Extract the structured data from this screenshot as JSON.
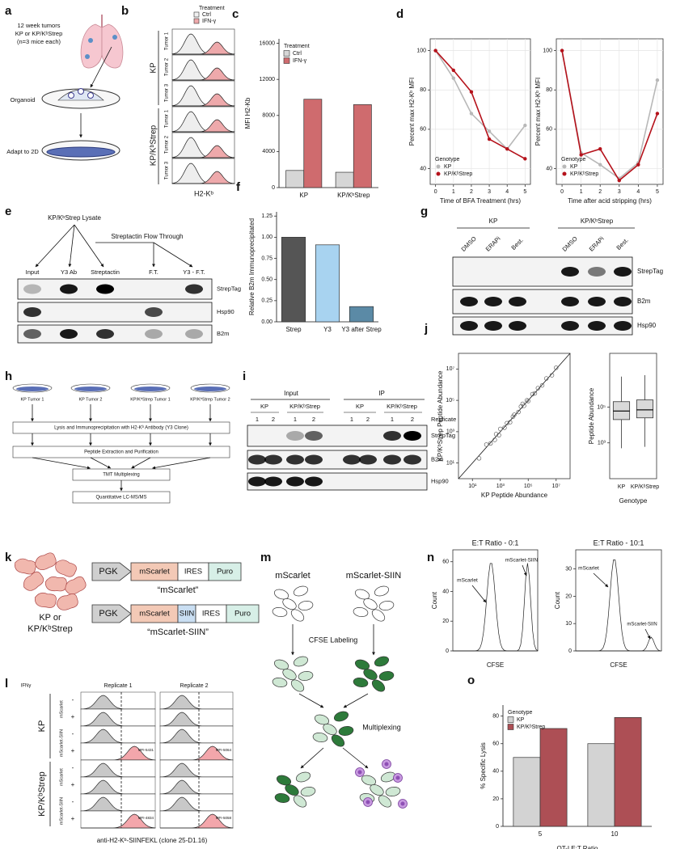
{
  "figure": {
    "a": {
      "label": "a",
      "lines": [
        "12 week tumors",
        "KP or KP/KᵇStrep",
        "(n=3 mice each)"
      ],
      "steps": [
        "Organoid",
        "Adapt to 2D"
      ]
    },
    "b": {
      "label": "b",
      "legend_title": "Treatment",
      "legend": [
        "Ctrl",
        "IFN-γ"
      ],
      "groups": [
        "KP",
        "KP/KᵇStrep"
      ],
      "tumors": [
        "Tumor 1",
        "Tumor 2",
        "Tumor 3"
      ],
      "xlabel": "H2-Kᵇ"
    },
    "e": {
      "label": "e",
      "lysate": "KP/KᵇStrep Lysate",
      "flow": "Streptactin Flow Through",
      "lanes": [
        "Input",
        "Y3 Ab",
        "Streptactin",
        "F.T.",
        "Y3 - F.T."
      ],
      "blots": [
        "StrepTag",
        "Hsp90",
        "B2m"
      ]
    },
    "g": {
      "label": "g",
      "groups": [
        "KP",
        "KP/KᵇStrep"
      ],
      "lanes": [
        "DMSO",
        "ERAPi",
        "Best."
      ],
      "blots": [
        "StrepTag",
        "B2m",
        "Hsp90"
      ]
    },
    "h": {
      "label": "h",
      "tumors": [
        "KP Tumor 1",
        "KP Tumor 2",
        "KP/KᵇStrep Tumor 1",
        "KP/KᵇStrep Tumor 2"
      ],
      "steps": [
        "Lysis and Immunoprecipitation with H2-Kᵇ Antibody (Y3 Clone)",
        "Peptide Extraction and Purification",
        "TMT Multiplexing",
        "Quantitative LC-MS/MS"
      ]
    },
    "i": {
      "label": "i",
      "sections": [
        "Input",
        "IP"
      ],
      "groups": [
        "KP",
        "KP/KᵇStrep"
      ],
      "replicate": "Replicate",
      "replicates": [
        "1",
        "2"
      ],
      "blots": [
        "StrepTag",
        "B2m",
        "Hsp90"
      ]
    },
    "k": {
      "label": "k",
      "cells": [
        "KP or",
        "KP/KᵇStrep"
      ],
      "promoter": "PGK",
      "constructs": [
        {
          "parts": [
            "mScarlet",
            "IRES",
            "Puro"
          ],
          "name": "“mScarlet”"
        },
        {
          "parts": [
            "mScarlet",
            "SIIN",
            "IRES",
            "Puro"
          ],
          "name": "“mScarlet-SIIN”"
        }
      ]
    },
    "l": {
      "label": "l",
      "treatment": "IFNγ",
      "replicates": [
        "Replicate 1",
        "Replicate 2"
      ],
      "signs": [
        "-",
        "+"
      ],
      "constructs": [
        "mScarlet",
        "mScarlet-SIIN"
      ],
      "groups": [
        "KP",
        "KP/KᵇStrep"
      ],
      "mfi": [
        "MFI-5431",
        "MFI-5064",
        "MFI-4834",
        "MFI-5058"
      ],
      "xlabel": "anti-H2-Kᵇ-SIINFEKL (clone 25-D1.16)"
    },
    "m": {
      "label": "m",
      "lines": [
        "mScarlet",
        "mScarlet-SIIN"
      ],
      "steps": [
        "CFSE Labeling",
        "Multiplexing"
      ]
    },
    "n": {
      "label": "n",
      "ylabel": "Count",
      "xlabel": "CFSE",
      "peaks": [
        "mScarlet",
        "mScarlet-SIIN"
      ],
      "panels": [
        {
          "title": "E:T Ratio - 0:1",
          "ylim": [
            0,
            68
          ],
          "yticks": [
            0,
            20,
            40,
            60
          ]
        },
        {
          "title": "E:T Ratio - 10:1",
          "ylim": [
            0,
            37
          ],
          "yticks": [
            0,
            10,
            20,
            30
          ]
        }
      ]
    }
  },
  "chart_data": [
    {
      "label": "c",
      "type": "bar",
      "ylabel": "MFI H2-Kb",
      "legend_title": "Treatment",
      "legend": "upper left",
      "categories": [
        "KP",
        "KP/KᵇStrep"
      ],
      "series": [
        {
          "name": "Ctrl",
          "color": "#d6d6d6",
          "values": [
            1900,
            1700
          ]
        },
        {
          "name": "IFN-γ",
          "color": "#cf6b6e",
          "values": [
            9800,
            9200
          ]
        }
      ],
      "ylim": [
        0,
        16500
      ],
      "yticks": [
        0,
        4000,
        8000,
        12000,
        16000
      ]
    },
    {
      "label": "d",
      "type": "line",
      "xlabel": "Time of BFA Treatment (hrs)",
      "ylabel": "Percent max H2-Kᵇ MFI",
      "legend_title": "Genotype",
      "legend": "lower left",
      "grid": true,
      "x": [
        0,
        1,
        2,
        3,
        4,
        5
      ],
      "series": [
        {
          "name": "KP",
          "color": "#b8b8b8",
          "values": [
            100,
            86,
            68,
            59,
            50,
            62
          ]
        },
        {
          "name": "KP/KᵇStrep",
          "color": "#b5121b",
          "values": [
            100,
            90,
            79,
            55,
            50,
            45
          ]
        }
      ],
      "xlim": [
        -0.3,
        5.3
      ],
      "ylim": [
        32,
        106
      ],
      "xticks": [
        0,
        1,
        2,
        3,
        4,
        5
      ],
      "yticks": [
        40,
        60,
        80,
        100
      ]
    },
    {
      "type": "line",
      "xlabel": "Time after acid stripping (hrs)",
      "ylabel": "Percent max H2-Kᵇ MFI",
      "legend_title": "Genotype",
      "legend": "lower left",
      "grid": true,
      "x": [
        0,
        1,
        2,
        3,
        4,
        5
      ],
      "series": [
        {
          "name": "KP",
          "color": "#b8b8b8",
          "values": [
            100,
            48,
            42,
            35,
            43,
            85
          ]
        },
        {
          "name": "KP/KᵇStrep",
          "color": "#b5121b",
          "values": [
            100,
            47,
            50,
            34,
            42,
            68
          ]
        }
      ],
      "xlim": [
        -0.3,
        5.3
      ],
      "ylim": [
        32,
        106
      ],
      "xticks": [
        0,
        1,
        2,
        3,
        4,
        5
      ],
      "yticks": [
        40,
        60,
        80,
        100
      ]
    },
    {
      "label": "f",
      "type": "bar",
      "ylabel": "Relative B2m Immunoprecipitated",
      "categories": [
        "Strep",
        "Y3",
        "Y3 after Strep"
      ],
      "values": [
        1.0,
        0.91,
        0.18
      ],
      "colors": [
        "#555555",
        "#a8d3f0",
        "#5b8aa6"
      ],
      "ylim": [
        0,
        1.3
      ],
      "yticks": [
        {
          "value": 0,
          "label": "0.00"
        },
        {
          "value": 0.25,
          "label": "0.25"
        },
        {
          "value": 0.5,
          "label": "0.50"
        },
        {
          "value": 0.75,
          "label": "0.75"
        },
        {
          "value": 1,
          "label": "1.00"
        },
        {
          "value": 1.25,
          "label": "1.25"
        }
      ]
    },
    {
      "label": "j",
      "type": "scatter",
      "xlabel": "KP Peptide Abundance",
      "ylabel": "KP/KᵇStrep Peptide Abundance",
      "log_scale": true,
      "x": [
        30,
        100,
        200,
        500,
        800,
        1000,
        2000,
        3000,
        5000,
        8000,
        10000,
        20000,
        30000,
        50000,
        80000,
        100000,
        200000,
        300000,
        500000,
        1000000,
        2000000,
        5000000,
        10000000,
        400,
        40000
      ],
      "y": [
        20,
        150,
        180,
        700,
        600,
        1500,
        1800,
        3500,
        4000,
        9000,
        12000,
        18000,
        40000,
        45000,
        100000,
        90000,
        250000,
        280000,
        600000,
        900000,
        2500000,
        4000000,
        12000000,
        300,
        60000
      ],
      "xlim": [
        1,
        100000000
      ],
      "ylim": [
        1,
        100000000
      ],
      "xticks": [
        {
          "value": 10,
          "label": "10¹"
        },
        {
          "value": 1000,
          "label": "10³"
        },
        {
          "value": 100000,
          "label": "10⁵"
        },
        {
          "value": 10000000,
          "label": "10⁷"
        }
      ],
      "yticks": [
        {
          "value": 10,
          "label": "10¹"
        },
        {
          "value": 1000,
          "label": "10³"
        },
        {
          "value": 100000,
          "label": "10⁵"
        },
        {
          "value": 10000000,
          "label": "10⁷"
        }
      ]
    },
    {
      "type": "box",
      "ylabel": "Peptide Abundance",
      "xlabel": "Genotype",
      "log_scale": true,
      "categories": [
        "KP",
        "KP/KᵇStrep"
      ],
      "whisker_low": [
        500,
        600
      ],
      "q1": [
        20000,
        25000
      ],
      "median": [
        60000,
        70000
      ],
      "q3": [
        200000,
        250000
      ],
      "whisker_high": [
        5000000,
        6000000
      ],
      "ylim": [
        10,
        100000000
      ],
      "yticks": [
        {
          "value": 1000,
          "label": "10³"
        },
        {
          "value": 100000,
          "label": "10⁵"
        }
      ]
    },
    {
      "label": "o",
      "type": "bar",
      "ylabel": "% Specific Lysis",
      "xlabel": "OT-I E:T Ratio",
      "legend_title": "Genotype",
      "legend": "upper left",
      "categories": [
        "5",
        "10"
      ],
      "series": [
        {
          "name": "KP",
          "color": "#d3d3d3",
          "values": [
            50,
            60
          ]
        },
        {
          "name": "KP/KᵇStrep",
          "color": "#ad4f55",
          "values": [
            71,
            79
          ]
        }
      ],
      "ylim": [
        0,
        88
      ],
      "yticks": [
        0,
        20,
        40,
        60,
        80
      ]
    }
  ]
}
